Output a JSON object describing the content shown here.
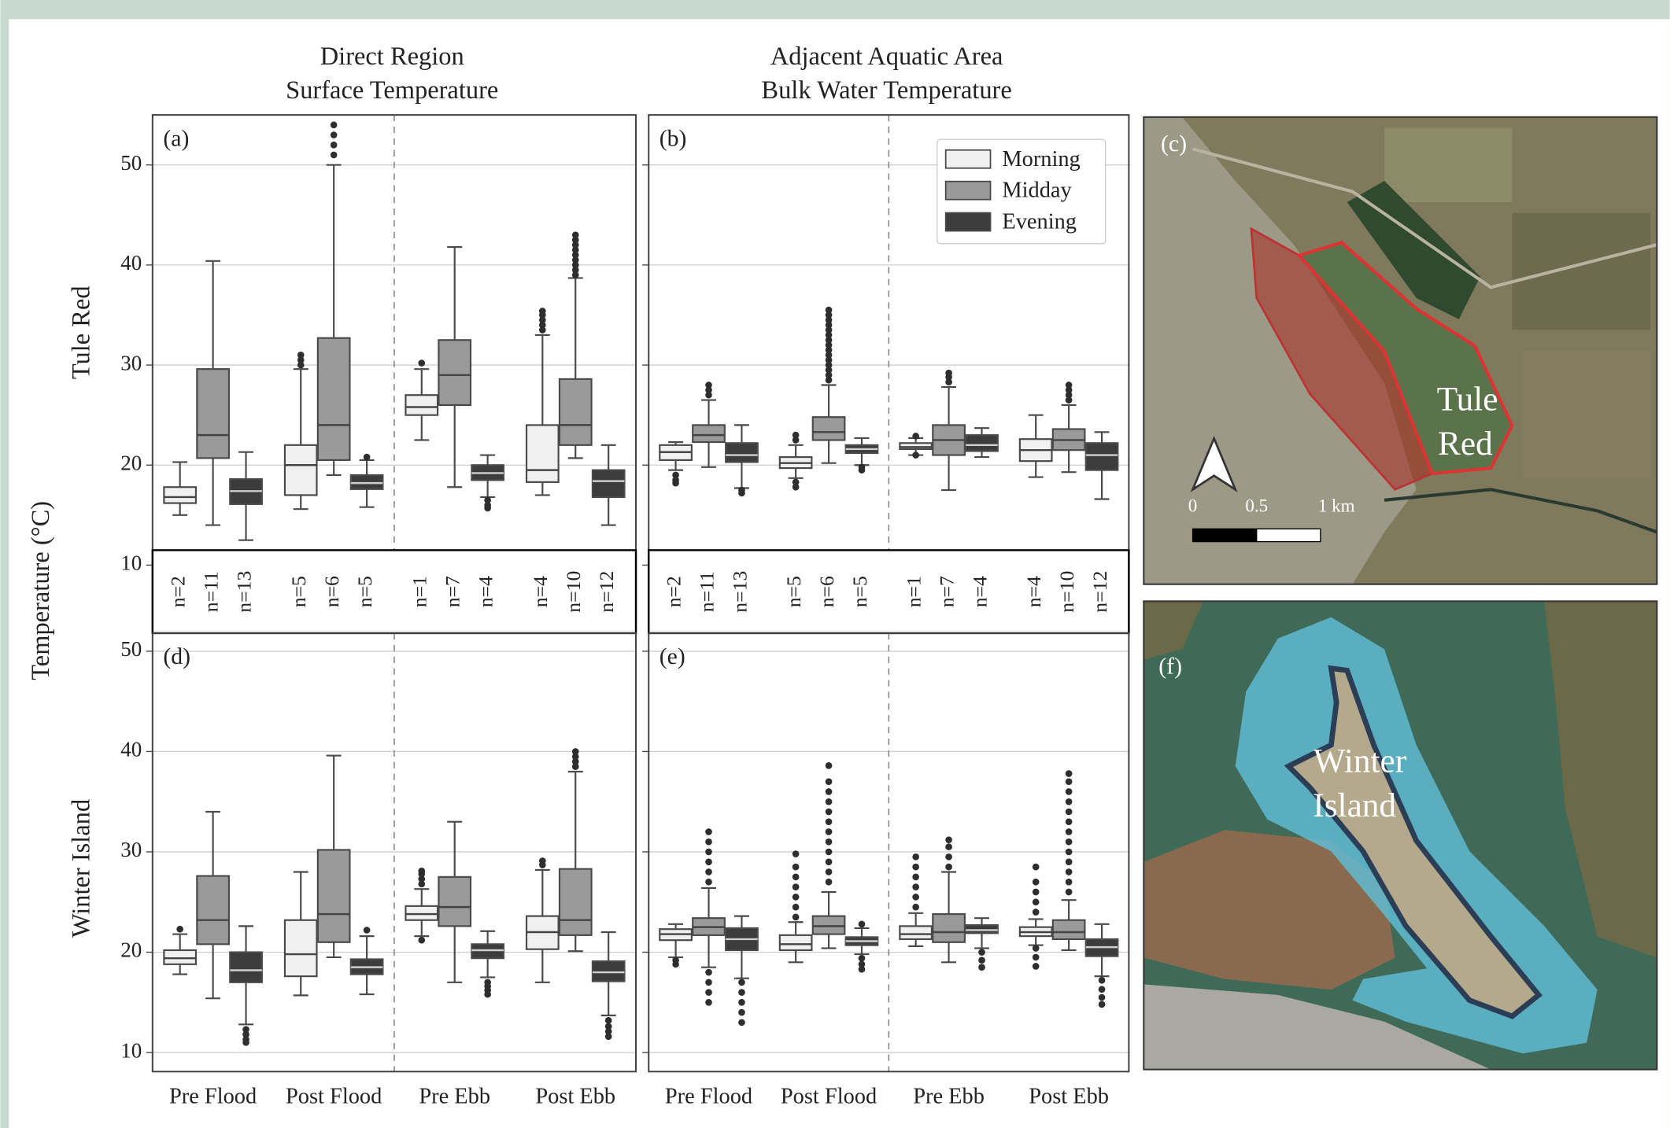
{
  "figure": {
    "y_label": "Temperature (°C)"
  },
  "maps": [
    {
      "panel_label": "(c)",
      "place_label": [
        "Tule",
        "Red"
      ],
      "scale_labels": [
        "0",
        "0.5",
        "1 km"
      ]
    },
    {
      "panel_label": "(f)",
      "place_label": [
        "Winter",
        "Island"
      ]
    }
  ],
  "chart_data": [
    {
      "type": "box",
      "panel_label": "(a)",
      "title": [
        "Direct Region",
        "Surface Temperature"
      ],
      "row_label": "Tule Red",
      "ylim": [
        3.2,
        55
      ],
      "yticks": [
        10,
        20,
        30,
        40,
        50
      ],
      "grid": true,
      "series": [
        {
          "color": "#f0f0f0",
          "n_labels": [
            "n=2",
            "n=5",
            "n=1",
            "n=4"
          ],
          "boxes": [
            {
              "whislo": 15,
              "q1": 16.2,
              "med": 16.8,
              "q3": 17.8,
              "whishi": 20.3,
              "fliers": []
            },
            {
              "whislo": 15.6,
              "q1": 17,
              "med": 20,
              "q3": 22,
              "whishi": 29.6,
              "fliers": [
                30,
                30.5,
                31
              ]
            },
            {
              "whislo": 22.5,
              "q1": 25,
              "med": 25.8,
              "q3": 27,
              "whishi": 29.6,
              "fliers": [
                30.2
              ]
            },
            {
              "whislo": 17,
              "q1": 18.3,
              "med": 19.5,
              "q3": 24,
              "whishi": 33,
              "fliers": [
                33.5,
                34,
                34.5,
                35,
                35.4
              ]
            }
          ]
        },
        {
          "color": "#9a9a9a",
          "n_labels": [
            "n=11",
            "n=6",
            "n=7",
            "n=10"
          ],
          "boxes": [
            {
              "whislo": 14,
              "q1": 20.7,
              "med": 23,
              "q3": 29.6,
              "whishi": 40.4,
              "fliers": []
            },
            {
              "whislo": 19,
              "q1": 20.5,
              "med": 24,
              "q3": 32.7,
              "whishi": 50,
              "fliers": [
                51,
                52,
                53,
                54
              ]
            },
            {
              "whislo": 17.8,
              "q1": 26,
              "med": 29,
              "q3": 32.5,
              "whishi": 41.8,
              "fliers": []
            },
            {
              "whislo": 20.7,
              "q1": 22,
              "med": 24,
              "q3": 28.6,
              "whishi": 38.7,
              "fliers": [
                39,
                39.5,
                40,
                40.5,
                41,
                41.5,
                42,
                42.5,
                43
              ]
            }
          ]
        },
        {
          "color": "#3c3c3c",
          "n_labels": [
            "n=13",
            "n=5",
            "n=4",
            "n=12"
          ],
          "boxes": [
            {
              "whislo": 12.5,
              "q1": 16.1,
              "med": 17.4,
              "q3": 18.6,
              "whishi": 21.3,
              "fliers": []
            },
            {
              "whislo": 15.8,
              "q1": 17.6,
              "med": 18.2,
              "q3": 19,
              "whishi": 20.5,
              "fliers": [
                20.8
              ]
            },
            {
              "whislo": 16.8,
              "q1": 18.5,
              "med": 19.2,
              "q3": 20,
              "whishi": 21,
              "fliers": [
                16.5,
                16,
                15.7
              ]
            },
            {
              "whislo": 14,
              "q1": 16.8,
              "med": 18.4,
              "q3": 19.5,
              "whishi": 22,
              "fliers": []
            }
          ]
        }
      ]
    },
    {
      "type": "box",
      "panel_label": "(b)",
      "title": [
        "Adjacent Aquatic Area",
        "Bulk  Water Temperature"
      ],
      "legend": "upper right",
      "ylim": [
        3.2,
        55
      ],
      "yticks": [
        10,
        20,
        30,
        40,
        50
      ],
      "ytick_labels": false,
      "grid": true,
      "series": [
        {
          "name": "Morning",
          "color": "#f0f0f0",
          "n_labels": [
            "n=2",
            "n=5",
            "n=1",
            "n=4"
          ],
          "boxes": [
            {
              "whislo": 19.5,
              "q1": 20.5,
              "med": 21.3,
              "q3": 22,
              "whishi": 22.3,
              "fliers": [
                19,
                18.5,
                18.2
              ]
            },
            {
              "whislo": 18.7,
              "q1": 19.7,
              "med": 20.2,
              "q3": 20.8,
              "whishi": 22,
              "fliers": [
                22.5,
                23,
                18.3,
                17.8
              ]
            },
            {
              "whislo": 21,
              "q1": 21.6,
              "med": 21.8,
              "q3": 22.2,
              "whishi": 22.7,
              "fliers": [
                21,
                22.9
              ]
            },
            {
              "whislo": 18.8,
              "q1": 20.4,
              "med": 21.5,
              "q3": 22.6,
              "whishi": 25,
              "fliers": []
            }
          ]
        },
        {
          "name": "Midday",
          "color": "#9a9a9a",
          "n_labels": [
            "n=11",
            "n=6",
            "n=7",
            "n=10"
          ],
          "boxes": [
            {
              "whislo": 19.8,
              "q1": 22.3,
              "med": 23,
              "q3": 24,
              "whishi": 26.5,
              "fliers": [
                27,
                27.5,
                28
              ]
            },
            {
              "whislo": 20.2,
              "q1": 22.5,
              "med": 23.3,
              "q3": 24.8,
              "whishi": 28,
              "fliers": [
                28.5,
                29,
                29.5,
                30,
                30.5,
                31,
                31.5,
                32,
                32.5,
                33,
                33.5,
                34,
                34.5,
                35,
                35.5
              ]
            },
            {
              "whislo": 17.5,
              "q1": 21,
              "med": 22.5,
              "q3": 24,
              "whishi": 27.8,
              "fliers": [
                28.3,
                28.8,
                29.2
              ]
            },
            {
              "whislo": 19.3,
              "q1": 21.5,
              "med": 22.5,
              "q3": 23.6,
              "whishi": 26,
              "fliers": [
                26.5,
                27,
                27.5,
                28
              ]
            }
          ]
        },
        {
          "name": "Evening",
          "color": "#3c3c3c",
          "n_labels": [
            "n=13",
            "n=5",
            "n=4",
            "n=12"
          ],
          "boxes": [
            {
              "whislo": 17.7,
              "q1": 20.3,
              "med": 21,
              "q3": 22.2,
              "whishi": 24,
              "fliers": [
                17.5,
                17.2
              ]
            },
            {
              "whislo": 20,
              "q1": 21.2,
              "med": 21.6,
              "q3": 22,
              "whishi": 22.7,
              "fliers": [
                19.8,
                19.5
              ]
            },
            {
              "whislo": 20.8,
              "q1": 21.4,
              "med": 22,
              "q3": 23,
              "whishi": 23.7,
              "fliers": []
            },
            {
              "whislo": 16.6,
              "q1": 19.5,
              "med": 21,
              "q3": 22.2,
              "whishi": 23.3,
              "fliers": []
            }
          ]
        }
      ]
    },
    {
      "type": "box",
      "panel_label": "(d)",
      "row_label": "Winter Island",
      "categories": [
        "Pre Flood",
        "Post Flood",
        "Pre Ebb",
        "Post Ebb"
      ],
      "ylim": [
        8.1,
        51.8
      ],
      "yticks": [
        10,
        20,
        30,
        40,
        50
      ],
      "grid": true,
      "series": [
        {
          "color": "#f0f0f0",
          "boxes": [
            {
              "whislo": 17.8,
              "q1": 18.8,
              "med": 19.4,
              "q3": 20.2,
              "whishi": 21.8,
              "fliers": [
                22.3
              ]
            },
            {
              "whislo": 15.7,
              "q1": 17.6,
              "med": 19.8,
              "q3": 23.2,
              "whishi": 28,
              "fliers": []
            },
            {
              "whislo": 21.6,
              "q1": 23.2,
              "med": 23.8,
              "q3": 24.6,
              "whishi": 26.3,
              "fliers": [
                26.8,
                27.3,
                27.8,
                28.1,
                21.2
              ]
            },
            {
              "whislo": 17,
              "q1": 20.3,
              "med": 22,
              "q3": 23.6,
              "whishi": 28.2,
              "fliers": [
                28.7,
                29.1
              ]
            }
          ]
        },
        {
          "color": "#9a9a9a",
          "boxes": [
            {
              "whislo": 15.4,
              "q1": 20.8,
              "med": 23.2,
              "q3": 27.6,
              "whishi": 34,
              "fliers": []
            },
            {
              "whislo": 19.5,
              "q1": 21,
              "med": 23.8,
              "q3": 30.2,
              "whishi": 39.6,
              "fliers": []
            },
            {
              "whislo": 17,
              "q1": 22.6,
              "med": 24.5,
              "q3": 27.5,
              "whishi": 33,
              "fliers": []
            },
            {
              "whislo": 20.1,
              "q1": 21.7,
              "med": 23.2,
              "q3": 28.3,
              "whishi": 38,
              "fliers": [
                38.5,
                39,
                39.5,
                40
              ]
            }
          ]
        },
        {
          "color": "#3c3c3c",
          "boxes": [
            {
              "whislo": 12.8,
              "q1": 17,
              "med": 18.2,
              "q3": 20,
              "whishi": 22.6,
              "fliers": [
                12.3,
                11.8,
                11.3,
                11
              ]
            },
            {
              "whislo": 15.8,
              "q1": 17.8,
              "med": 18.5,
              "q3": 19.3,
              "whishi": 21.6,
              "fliers": [
                22.2
              ]
            },
            {
              "whislo": 17.5,
              "q1": 19.4,
              "med": 20.2,
              "q3": 20.8,
              "whishi": 22.1,
              "fliers": [
                17,
                16.6,
                16.2,
                15.8
              ]
            },
            {
              "whislo": 13.7,
              "q1": 17.1,
              "med": 18,
              "q3": 19.1,
              "whishi": 22,
              "fliers": [
                13.2,
                12.6,
                12.1,
                11.6
              ]
            }
          ]
        }
      ]
    },
    {
      "type": "box",
      "panel_label": "(e)",
      "categories": [
        "Pre Flood",
        "Post Flood",
        "Pre Ebb",
        "Post Ebb"
      ],
      "ylim": [
        8.1,
        51.8
      ],
      "yticks": [
        10,
        20,
        30,
        40,
        50
      ],
      "ytick_labels": false,
      "grid": true,
      "series": [
        {
          "color": "#f0f0f0",
          "boxes": [
            {
              "whislo": 19.5,
              "q1": 21.2,
              "med": 21.8,
              "q3": 22.3,
              "whishi": 22.8,
              "fliers": [
                19.2,
                18.8
              ]
            },
            {
              "whislo": 19,
              "q1": 20.2,
              "med": 20.8,
              "q3": 21.7,
              "whishi": 23,
              "fliers": [
                23.5,
                24.5,
                25.5,
                26.5,
                27.5,
                28.5,
                29.8
              ]
            },
            {
              "whislo": 20.6,
              "q1": 21.3,
              "med": 21.8,
              "q3": 22.6,
              "whishi": 23.9,
              "fliers": [
                24.5,
                25.5,
                26.5,
                27.5,
                28.5,
                29.5
              ]
            },
            {
              "whislo": 20.7,
              "q1": 21.6,
              "med": 22,
              "q3": 22.5,
              "whishi": 23.3,
              "fliers": [
                24,
                25,
                26,
                27,
                28.5,
                20.4,
                19.5,
                18.6
              ]
            }
          ]
        },
        {
          "color": "#9a9a9a",
          "boxes": [
            {
              "whislo": 18.5,
              "q1": 21.7,
              "med": 22.5,
              "q3": 23.4,
              "whishi": 26.4,
              "fliers": [
                27,
                28,
                29,
                30,
                31,
                32,
                18,
                17,
                16,
                15
              ]
            },
            {
              "whislo": 20.4,
              "q1": 21.8,
              "med": 22.6,
              "q3": 23.6,
              "whishi": 26,
              "fliers": [
                27,
                28,
                29,
                30,
                31,
                32,
                33,
                34,
                35,
                36,
                37,
                38.6
              ]
            },
            {
              "whislo": 19,
              "q1": 21,
              "med": 22,
              "q3": 23.8,
              "whishi": 28,
              "fliers": [
                28.5,
                29.5,
                30.5,
                31.2
              ]
            },
            {
              "whislo": 20.2,
              "q1": 21.3,
              "med": 22,
              "q3": 23.2,
              "whishi": 25.2,
              "fliers": [
                26,
                27,
                28,
                29,
                30,
                31,
                32,
                33,
                34,
                35,
                36,
                37,
                37.8
              ]
            }
          ]
        },
        {
          "color": "#3c3c3c",
          "boxes": [
            {
              "whislo": 17.4,
              "q1": 20.2,
              "med": 21.3,
              "q3": 22.4,
              "whishi": 23.6,
              "fliers": [
                17,
                16,
                15,
                14,
                13
              ]
            },
            {
              "whislo": 19.8,
              "q1": 20.7,
              "med": 21.1,
              "q3": 21.5,
              "whishi": 22.4,
              "fliers": [
                22.8,
                19.4,
                18.8,
                18.3
              ]
            },
            {
              "whislo": 20.4,
              "q1": 21.9,
              "med": 22.2,
              "q3": 22.7,
              "whishi": 23.4,
              "fliers": [
                20,
                19.2,
                18.5
              ]
            },
            {
              "whislo": 17.6,
              "q1": 19.6,
              "med": 20.5,
              "q3": 21.3,
              "whishi": 22.8,
              "fliers": [
                17.2,
                16.3,
                15.5,
                14.8
              ]
            }
          ]
        }
      ]
    }
  ]
}
